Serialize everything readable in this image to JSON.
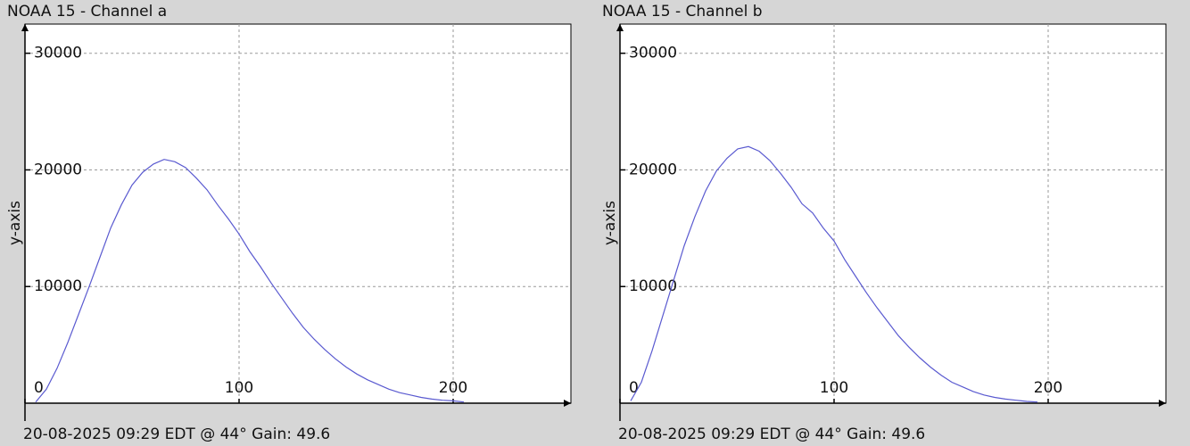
{
  "chart_data": [
    {
      "type": "line",
      "title": "NOAA 15 - Channel a",
      "y_label": "y-axis",
      "footer": "20-08-2025 09:29 EDT @ 44° Gain: 49.6",
      "xlim": [
        0,
        255
      ],
      "xticks": [
        0,
        100,
        200
      ],
      "ylim": [
        0,
        32500
      ],
      "yticks": [
        10000,
        20000,
        30000
      ],
      "grid": true,
      "x": [
        5,
        10,
        15,
        20,
        25,
        30,
        35,
        40,
        45,
        50,
        55,
        60,
        65,
        70,
        75,
        80,
        85,
        90,
        95,
        100,
        105,
        110,
        115,
        120,
        125,
        130,
        135,
        140,
        145,
        150,
        155,
        160,
        165,
        170,
        175,
        180,
        185,
        190,
        195,
        200,
        205
      ],
      "series": [
        {
          "color": "#5a5ad0",
          "values": [
            100,
            1200,
            3000,
            5200,
            7600,
            10000,
            12500,
            15000,
            17000,
            18700,
            19800,
            20500,
            20900,
            20700,
            20200,
            19300,
            18300,
            17000,
            15800,
            14500,
            13000,
            11700,
            10300,
            9000,
            7700,
            6500,
            5500,
            4600,
            3800,
            3100,
            2500,
            2000,
            1600,
            1200,
            900,
            700,
            500,
            350,
            250,
            200,
            100
          ]
        }
      ]
    },
    {
      "type": "line",
      "title": "NOAA 15 - Channel b",
      "y_label": "y-axis",
      "footer": "20-08-2025 09:29 EDT @ 44° Gain: 49.6",
      "xlim": [
        0,
        255
      ],
      "xticks": [
        0,
        100,
        200
      ],
      "ylim": [
        0,
        32500
      ],
      "yticks": [
        10000,
        20000,
        30000
      ],
      "grid": true,
      "x": [
        5,
        10,
        15,
        20,
        25,
        30,
        35,
        40,
        45,
        50,
        55,
        60,
        65,
        70,
        75,
        80,
        85,
        90,
        95,
        100,
        105,
        110,
        115,
        120,
        125,
        130,
        135,
        140,
        145,
        150,
        155,
        160,
        165,
        170,
        175,
        180,
        185,
        190,
        195
      ],
      "series": [
        {
          "color": "#5a5ad0",
          "values": [
            200,
            1800,
            4500,
            7500,
            10500,
            13500,
            16000,
            18200,
            19900,
            21000,
            21800,
            22000,
            21600,
            20800,
            19700,
            18500,
            17100,
            16300,
            15000,
            13900,
            12300,
            10900,
            9500,
            8200,
            7000,
            5800,
            4800,
            3900,
            3100,
            2400,
            1800,
            1400,
            1000,
            700,
            500,
            350,
            250,
            150,
            100
          ]
        }
      ]
    }
  ]
}
